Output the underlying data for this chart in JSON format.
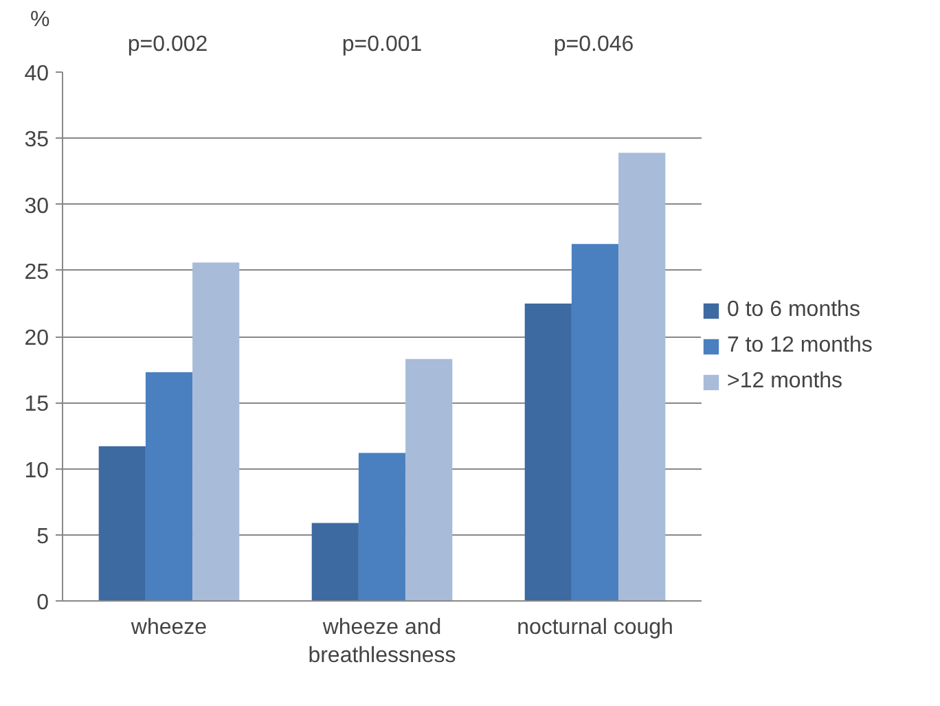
{
  "chart_data": {
    "type": "bar",
    "ylabel": "%",
    "categories": [
      "wheeze",
      "wheeze and breathlessness",
      "nocturnal cough"
    ],
    "series": [
      {
        "name": "0 to 6 months",
        "color": "#3d6aa1",
        "values": [
          11.7,
          5.9,
          22.5
        ]
      },
      {
        "name": "7 to 12 months",
        "color": "#4a80c0",
        "values": [
          17.3,
          11.2,
          27.0
        ]
      },
      {
        "name": ">12 months",
        "color": "#a8bbd9",
        "values": [
          25.6,
          18.3,
          33.9
        ]
      }
    ],
    "ylim": [
      0,
      40
    ],
    "yticks": [
      0,
      5,
      10,
      15,
      20,
      25,
      30,
      35,
      40
    ],
    "grid": "y",
    "legend": "right",
    "annotations": [
      "p=0.002",
      "p=0.001",
      "p=0.046"
    ]
  }
}
